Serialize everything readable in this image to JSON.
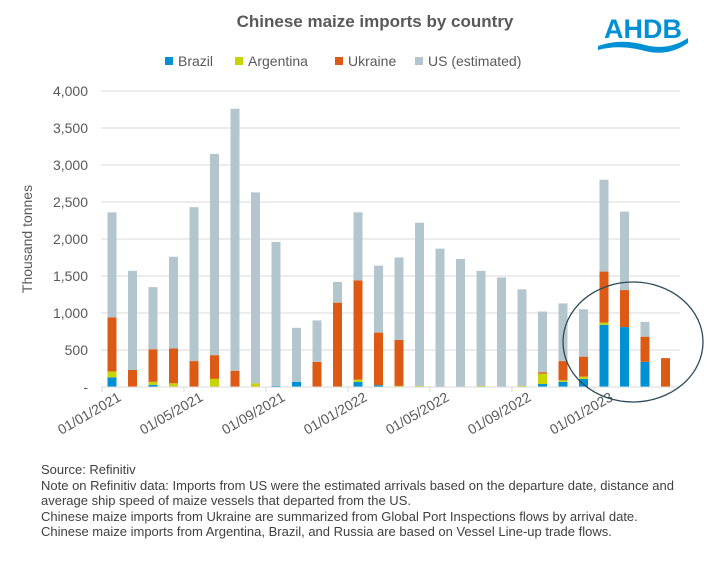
{
  "chart_data": {
    "type": "bar",
    "stacked": true,
    "title": "Chinese maize imports by country",
    "ylabel": "Thousand tonnes",
    "xlabel": "",
    "ylim": [
      0,
      4000
    ],
    "yticks": [
      "-",
      "500",
      "1,000",
      "1,500",
      "2,000",
      "2,500",
      "3,000",
      "3,500",
      "4,000"
    ],
    "xtick_labels": [
      "01/01/2021",
      "01/05/2021",
      "01/09/2021",
      "01/01/2022",
      "01/05/2022",
      "01/09/2022",
      "01/01/2023"
    ],
    "grid": true,
    "legend": "top",
    "categories": [
      "01/01/2021",
      "01/02/2021",
      "01/03/2021",
      "01/04/2021",
      "01/05/2021",
      "01/06/2021",
      "01/07/2021",
      "01/08/2021",
      "01/09/2021",
      "01/10/2021",
      "01/11/2021",
      "01/12/2021",
      "01/01/2022",
      "01/02/2022",
      "01/03/2022",
      "01/04/2022",
      "01/05/2022",
      "01/06/2022",
      "01/07/2022",
      "01/08/2022",
      "01/09/2022",
      "01/10/2022",
      "01/11/2022",
      "01/12/2022",
      "01/01/2023",
      "01/02/2023",
      "01/03/2023",
      "01/04/2023"
    ],
    "series": [
      {
        "name": "Brazil",
        "color": "#0090d4",
        "values": [
          130,
          0,
          30,
          0,
          0,
          0,
          0,
          0,
          15,
          70,
          0,
          0,
          70,
          25,
          0,
          0,
          0,
          0,
          0,
          0,
          0,
          40,
          70,
          110,
          840,
          810,
          340,
          0
        ]
      },
      {
        "name": "Argentina",
        "color": "#c8d400",
        "values": [
          80,
          0,
          40,
          50,
          0,
          110,
          0,
          50,
          0,
          0,
          0,
          0,
          30,
          0,
          15,
          15,
          0,
          0,
          15,
          0,
          15,
          140,
          20,
          30,
          30,
          0,
          0,
          0
        ]
      },
      {
        "name": "Ukraine",
        "color": "#dc5a14",
        "values": [
          730,
          230,
          440,
          470,
          350,
          320,
          220,
          0,
          0,
          0,
          340,
          1140,
          1340,
          710,
          620,
          0,
          0,
          0,
          0,
          0,
          0,
          20,
          260,
          270,
          690,
          500,
          340,
          390
        ]
      },
      {
        "name": "US (estimated)",
        "color": "#b4c6cd",
        "values": [
          1420,
          1340,
          840,
          1240,
          2080,
          2720,
          3540,
          2580,
          1945,
          730,
          560,
          280,
          920,
          905,
          1115,
          2205,
          1870,
          1730,
          1555,
          1480,
          1305,
          820,
          780,
          640,
          1240,
          1060,
          200,
          0
        ]
      }
    ]
  },
  "logo": {
    "text": "AHDB",
    "color": "#0090d4"
  },
  "notes": [
    "Source: Refinitiv",
    "Note on Refinitiv data: Imports from US were the estimated arrivals based on the departure date, distance and average ship speed of maize vessels that departed from the US.",
    "Chinese maize imports from Ukraine are summarized from Global Port Inspections flows by arrival date.",
    "Chinese maize imports from Argentina, Brazil, and Russia are based on Vessel Line-up trade flows."
  ]
}
